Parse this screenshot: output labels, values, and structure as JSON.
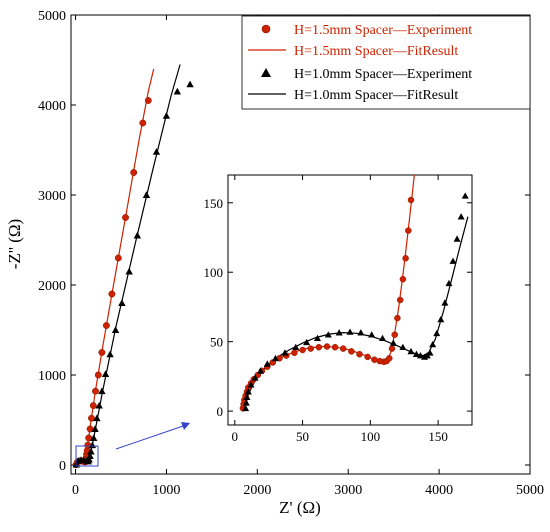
{
  "chart_data": [
    {
      "type": "scatter",
      "role": "main",
      "xlabel": "Z' (Ω)",
      "ylabel": "-Z'' (Ω)",
      "xlim": [
        -50,
        5000
      ],
      "ylim": [
        -100,
        5000
      ],
      "xticks": [
        "0",
        "1000",
        "2000",
        "3000",
        "4000",
        "5000"
      ],
      "yticks": [
        "0",
        "1000",
        "2000",
        "3000",
        "4000",
        "5000"
      ],
      "legend_position": "top-right",
      "series": [
        {
          "name": "H=1.5mm Spacer—Experiment",
          "kind": "marker-circle",
          "color": "#cc2200",
          "x": [
            6,
            20,
            35,
            50,
            65,
            80,
            95,
            110,
            115,
            118,
            122,
            128,
            135,
            145,
            160,
            175,
            195,
            220,
            250,
            290,
            340,
            400,
            470,
            550,
            640,
            740,
            800
          ],
          "y": [
            5,
            30,
            42,
            46,
            45,
            42,
            37,
            36,
            50,
            80,
            120,
            160,
            220,
            300,
            400,
            520,
            660,
            820,
            1000,
            1250,
            1550,
            1900,
            2300,
            2750,
            3250,
            3800,
            4050
          ]
        },
        {
          "name": "H=1.5mm Spacer—FitResult",
          "kind": "line",
          "color": "#cc2200",
          "x": [
            6,
            40,
            80,
            110,
            118,
            130,
            160,
            220,
            300,
            400,
            550,
            700,
            800,
            860
          ],
          "y": [
            5,
            43,
            42,
            36,
            80,
            200,
            420,
            830,
            1320,
            1900,
            2750,
            3620,
            4150,
            4400
          ]
        },
        {
          "name": "H=1.0mm Spacer—Experiment",
          "kind": "marker-triangle",
          "color": "#000000",
          "x": [
            8,
            30,
            60,
            90,
            120,
            140,
            150,
            160,
            170,
            185,
            200,
            215,
            235,
            260,
            290,
            330,
            380,
            440,
            510,
            590,
            680,
            780,
            890,
            1000,
            1120,
            1260
          ],
          "y": [
            5,
            45,
            56,
            55,
            45,
            40,
            60,
            100,
            150,
            220,
            300,
            400,
            520,
            660,
            820,
            1010,
            1230,
            1500,
            1800,
            2150,
            2550,
            3000,
            3480,
            3880,
            4150,
            4230
          ]
        },
        {
          "name": "H=1.0mm Spacer—FitResult",
          "kind": "line",
          "color": "#000000",
          "x": [
            8,
            60,
            110,
            142,
            160,
            200,
            300,
            450,
            650,
            850,
            1050,
            1150
          ],
          "y": [
            5,
            55,
            48,
            40,
            100,
            300,
            830,
            1560,
            2430,
            3280,
            4100,
            4450
          ]
        }
      ]
    },
    {
      "type": "scatter",
      "role": "inset",
      "xlim": [
        -5,
        175
      ],
      "ylim": [
        -10,
        170
      ],
      "xticks": [
        "0",
        "50",
        "100",
        "150"
      ],
      "yticks": [
        "0",
        "50",
        "100",
        "150"
      ],
      "series": [
        {
          "name": "H=1.5mm Spacer—Experiment",
          "kind": "marker-circle",
          "color": "#cc2200",
          "x": [
            6,
            6.5,
            7,
            8,
            9,
            10,
            12,
            14,
            17,
            20,
            24,
            28,
            33,
            38,
            44,
            50,
            56,
            62,
            68,
            74,
            80,
            86,
            92,
            98,
            103,
            107,
            110,
            112,
            114,
            116,
            118,
            120,
            122,
            124,
            126,
            128,
            130
          ],
          "y": [
            2,
            5,
            8,
            11,
            14,
            17,
            20,
            23,
            26,
            29,
            32,
            35,
            38,
            40,
            42,
            44,
            45,
            46,
            46.5,
            46,
            45,
            43,
            41,
            39,
            37,
            36,
            35.5,
            36,
            38,
            45,
            55,
            67,
            80,
            95,
            110,
            130,
            152
          ]
        },
        {
          "name": "H=1.5mm Spacer—FitResult",
          "kind": "line",
          "color": "#cc2200",
          "x": [
            5.5,
            8,
            12,
            18,
            25,
            35,
            45,
            55,
            65,
            75,
            85,
            95,
            103,
            108,
            112,
            115,
            118,
            121,
            124,
            127,
            130,
            133
          ],
          "y": [
            0,
            10,
            19,
            27,
            33,
            39,
            43,
            45.5,
            46.5,
            46,
            44,
            40.5,
            37,
            35.5,
            36.5,
            42,
            56,
            75,
            98,
            122,
            148,
            175
          ]
        },
        {
          "name": "H=1.0mm Spacer—Experiment",
          "kind": "marker-triangle",
          "color": "#000000",
          "x": [
            8,
            8.5,
            9,
            10,
            12,
            15,
            19,
            24,
            30,
            37,
            45,
            53,
            61,
            69,
            77,
            85,
            93,
            101,
            109,
            117,
            124,
            130,
            134,
            137,
            140,
            142,
            144,
            146,
            149,
            152,
            155,
            158,
            161,
            164,
            167,
            170
          ],
          "y": [
            2,
            6,
            10,
            14,
            19,
            24,
            29,
            34,
            38,
            42,
            46,
            49.5,
            52.5,
            55,
            56.5,
            57,
            56.5,
            55,
            52.5,
            49,
            46,
            43,
            41,
            40,
            39,
            40,
            42,
            48,
            56,
            66,
            78,
            92,
            108,
            124,
            140,
            155
          ]
        },
        {
          "name": "H=1.0mm Spacer—FitResult",
          "kind": "line",
          "color": "#000000",
          "x": [
            7,
            10,
            15,
            22,
            30,
            40,
            50,
            60,
            70,
            80,
            90,
            100,
            110,
            120,
            128,
            134,
            139,
            143,
            148,
            154,
            160,
            166,
            172
          ],
          "y": [
            0,
            12,
            22,
            31,
            38,
            44,
            49,
            53,
            55.5,
            56.5,
            56,
            54,
            51,
            47,
            43.5,
            41,
            40,
            42,
            52,
            72,
            95,
            118,
            140
          ]
        }
      ]
    }
  ]
}
